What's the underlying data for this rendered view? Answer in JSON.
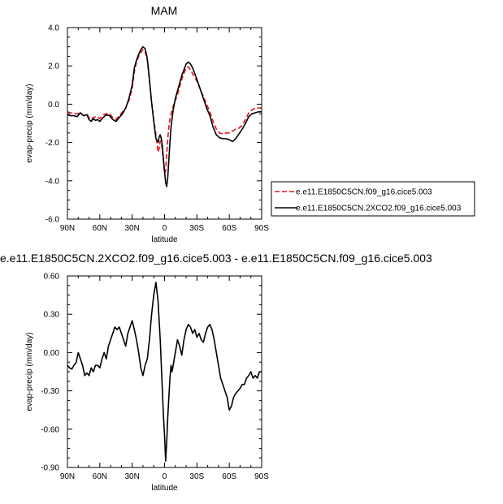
{
  "chart_data": [
    {
      "type": "line",
      "title": "MAM",
      "xlabel": "latitude",
      "ylabel": "evap-precip (mm/day)",
      "xlim": [
        90,
        -90
      ],
      "ylim": [
        -6.0,
        4.0
      ],
      "xticks": [
        90,
        60,
        30,
        0,
        -30,
        -60,
        -90
      ],
      "xtick_labels": [
        "90N",
        "60N",
        "30N",
        "0",
        "30S",
        "60S",
        "90S"
      ],
      "yticks": [
        -6,
        -4,
        -2,
        0,
        2,
        4
      ],
      "ytick_labels": [
        "-6.0",
        "-4.0",
        "-2.0",
        "0.0",
        "2.0",
        "4.0"
      ],
      "legend_position": "right",
      "series": [
        {
          "name": "e.e11.E1850C5CN.f09_g16.cice5.003",
          "color": "#e8131c",
          "dash": "dashed",
          "x": [
            90,
            87,
            84,
            81,
            78,
            75,
            72,
            70,
            68,
            66,
            64,
            62,
            60,
            57,
            54,
            51,
            48,
            45,
            42,
            39,
            36,
            33,
            30,
            28,
            26,
            24,
            22,
            20,
            18,
            16,
            14,
            12,
            10,
            8,
            6,
            5,
            4,
            3,
            2,
            1,
            0,
            -1,
            -2,
            -3,
            -4,
            -5,
            -6,
            -8,
            -10,
            -12,
            -14,
            -16,
            -18,
            -20,
            -22,
            -24,
            -26,
            -28,
            -30,
            -33,
            -36,
            -39,
            -42,
            -45,
            -48,
            -51,
            -54,
            -57,
            -60,
            -63,
            -66,
            -69,
            -72,
            -75,
            -78,
            -81,
            -84,
            -87,
            -90
          ],
          "y": [
            -0.4,
            -0.45,
            -0.5,
            -0.5,
            -0.45,
            -0.6,
            -0.5,
            -0.7,
            -0.8,
            -0.7,
            -0.65,
            -0.65,
            -0.75,
            -0.55,
            -0.5,
            -0.5,
            -0.7,
            -0.8,
            -0.6,
            -0.4,
            -0.2,
            0.2,
            0.8,
            1.7,
            2.2,
            2.5,
            2.7,
            2.85,
            2.75,
            2.3,
            1.2,
            0.1,
            -0.8,
            -1.6,
            -2.5,
            -2.3,
            -1.9,
            -2.0,
            -2.4,
            -3.0,
            -3.6,
            -3.5,
            -2.6,
            -1.8,
            -1.2,
            -0.8,
            -0.5,
            -0.1,
            0.2,
            0.5,
            0.9,
            1.3,
            1.6,
            1.9,
            1.95,
            1.8,
            1.6,
            1.4,
            1.2,
            0.8,
            0.4,
            0.0,
            -0.4,
            -0.9,
            -1.3,
            -1.5,
            -1.55,
            -1.5,
            -1.5,
            -1.4,
            -1.3,
            -1.25,
            -1.1,
            -0.8,
            -0.45,
            -0.3,
            -0.2,
            -0.2,
            -0.2
          ]
        },
        {
          "name": "e.e11.E1850C5CN.2XCO2.f09_g16.cice5.003",
          "color": "#000000",
          "dash": "solid",
          "x": [
            90,
            87,
            84,
            81,
            78,
            75,
            72,
            70,
            68,
            66,
            64,
            62,
            60,
            57,
            54,
            51,
            48,
            45,
            42,
            39,
            36,
            33,
            30,
            28,
            26,
            24,
            22,
            20,
            18,
            16,
            14,
            12,
            10,
            8,
            6,
            5,
            4,
            3,
            2,
            1,
            0,
            -1,
            -2,
            -3,
            -4,
            -5,
            -6,
            -8,
            -10,
            -12,
            -14,
            -16,
            -18,
            -20,
            -22,
            -24,
            -26,
            -28,
            -30,
            -33,
            -36,
            -39,
            -42,
            -45,
            -48,
            -51,
            -54,
            -57,
            -60,
            -63,
            -66,
            -69,
            -72,
            -75,
            -78,
            -81,
            -84,
            -87,
            -90
          ],
          "y": [
            -0.55,
            -0.6,
            -0.6,
            -0.65,
            -0.45,
            -0.6,
            -0.55,
            -0.8,
            -0.9,
            -0.75,
            -0.85,
            -0.8,
            -0.9,
            -0.7,
            -0.55,
            -0.6,
            -0.8,
            -0.9,
            -0.7,
            -0.5,
            -0.2,
            0.3,
            1.0,
            1.9,
            2.3,
            2.6,
            2.85,
            3.0,
            2.9,
            2.4,
            1.3,
            0.1,
            -0.9,
            -1.8,
            -2.0,
            -1.7,
            -1.6,
            -1.8,
            -2.2,
            -2.9,
            -3.5,
            -4.1,
            -4.3,
            -3.8,
            -2.9,
            -2.0,
            -1.2,
            -0.3,
            0.3,
            0.7,
            1.1,
            1.5,
            1.8,
            2.1,
            2.2,
            2.1,
            1.9,
            1.6,
            1.3,
            0.8,
            0.3,
            -0.2,
            -0.6,
            -1.2,
            -1.6,
            -1.75,
            -1.8,
            -1.8,
            -1.85,
            -1.95,
            -1.8,
            -1.55,
            -1.3,
            -1.0,
            -0.65,
            -0.5,
            -0.45,
            -0.4,
            -0.4
          ]
        }
      ]
    },
    {
      "type": "line",
      "title": "e.e11.E1850C5CN.2XCO2.f09_g16.cice5.003 - e.e11.E1850C5CN.f09_g16.cice5.003",
      "xlabel": "latitude",
      "ylabel": "evap-precip (mm/day)",
      "xlim": [
        90,
        -90
      ],
      "ylim": [
        -0.9,
        0.6
      ],
      "xticks": [
        90,
        60,
        30,
        0,
        -30,
        -60,
        -90
      ],
      "xtick_labels": [
        "90N",
        "60N",
        "30N",
        "0",
        "30S",
        "60S",
        "90S"
      ],
      "yticks": [
        -0.9,
        -0.6,
        -0.3,
        0.0,
        0.3,
        0.6
      ],
      "ytick_labels": [
        "-0.90",
        "-0.60",
        "-0.30",
        "0.00",
        "0.30",
        "0.60"
      ],
      "series": [
        {
          "color": "#000000",
          "dash": "solid",
          "x": [
            90,
            88,
            86,
            84,
            82,
            80,
            78,
            76,
            74,
            72,
            70,
            68,
            66,
            64,
            62,
            60,
            58,
            56,
            54,
            52,
            50,
            48,
            46,
            44,
            42,
            40,
            38,
            36,
            34,
            32,
            30,
            28,
            26,
            24,
            22,
            20,
            18,
            16,
            14,
            12,
            10,
            8,
            6,
            4,
            3,
            2,
            1,
            0,
            -1,
            -2,
            -3,
            -4,
            -5,
            -6,
            -7,
            -8,
            -10,
            -12,
            -14,
            -16,
            -18,
            -20,
            -22,
            -24,
            -26,
            -28,
            -30,
            -32,
            -34,
            -36,
            -38,
            -40,
            -42,
            -44,
            -46,
            -48,
            -50,
            -52,
            -54,
            -56,
            -58,
            -60,
            -62,
            -64,
            -66,
            -68,
            -70,
            -72,
            -74,
            -76,
            -78,
            -80,
            -82,
            -84,
            -86,
            -88,
            -90
          ],
          "y": [
            -0.1,
            -0.12,
            -0.13,
            -0.1,
            -0.08,
            0.0,
            -0.05,
            -0.1,
            -0.18,
            -0.16,
            -0.18,
            -0.12,
            -0.15,
            -0.1,
            -0.1,
            -0.12,
            -0.05,
            0.0,
            -0.05,
            0.05,
            0.1,
            0.15,
            0.2,
            0.18,
            0.2,
            0.15,
            0.1,
            0.05,
            0.15,
            0.2,
            0.25,
            0.18,
            0.1,
            0.0,
            -0.12,
            -0.18,
            -0.1,
            -0.05,
            0.1,
            0.3,
            0.45,
            0.55,
            0.4,
            0.1,
            -0.1,
            -0.3,
            -0.5,
            -0.65,
            -0.85,
            -0.7,
            -0.5,
            -0.35,
            -0.2,
            -0.1,
            -0.15,
            -0.1,
            0.0,
            0.1,
            0.05,
            -0.02,
            0.1,
            0.18,
            0.22,
            0.2,
            0.15,
            0.18,
            0.12,
            0.15,
            0.1,
            0.08,
            0.15,
            0.2,
            0.22,
            0.18,
            0.1,
            0.0,
            -0.1,
            -0.2,
            -0.25,
            -0.3,
            -0.35,
            -0.45,
            -0.42,
            -0.35,
            -0.32,
            -0.3,
            -0.28,
            -0.25,
            -0.25,
            -0.2,
            -0.18,
            -0.15,
            -0.2,
            -0.18,
            -0.2,
            -0.15,
            -0.15
          ]
        }
      ]
    }
  ]
}
